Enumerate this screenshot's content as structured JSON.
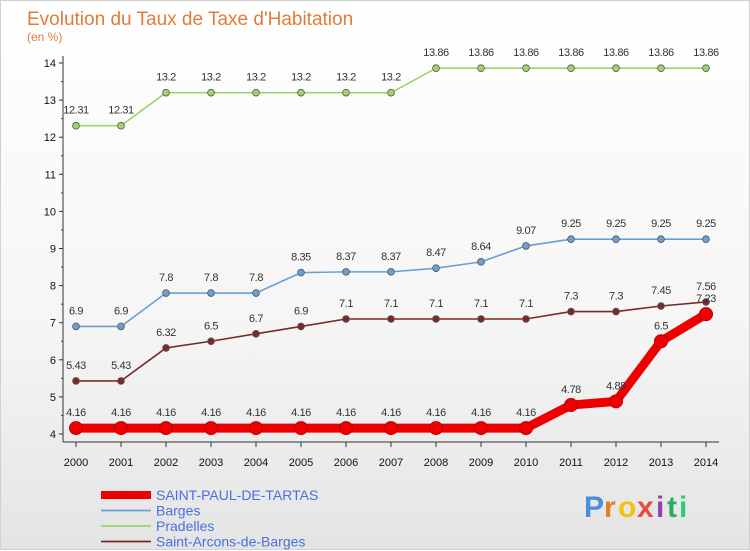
{
  "chart_data": {
    "type": "line",
    "title": "Evolution du Taux de Taxe d'Habitation",
    "subtitle": "(en %)",
    "xlabel": "",
    "ylabel": "",
    "x": [
      "2000",
      "2001",
      "2002",
      "2003",
      "2004",
      "2005",
      "2006",
      "2007",
      "2008",
      "2009",
      "2010",
      "2011",
      "2012",
      "2013",
      "2014"
    ],
    "ylim": [
      4,
      14
    ],
    "yticks": [
      4,
      5,
      6,
      7,
      8,
      9,
      10,
      11,
      12,
      13,
      14
    ],
    "grid": false,
    "legend_position": "bottom-left",
    "series": [
      {
        "name": "SAINT-PAUL-DE-TARTAS",
        "color": "#ee0000",
        "values": [
          4.16,
          4.16,
          4.16,
          4.16,
          4.16,
          4.16,
          4.16,
          4.16,
          4.16,
          4.16,
          4.16,
          4.78,
          4.88,
          6.5,
          7.23
        ],
        "labels": [
          "4.16",
          "4.16",
          "4.16",
          "4.16",
          "4.16",
          "4.16",
          "4.16",
          "4.16",
          "4.16",
          "4.16",
          "4.16",
          "4.78",
          "4.88",
          "6.5",
          "7.23"
        ]
      },
      {
        "name": "Barges",
        "color": "#6a9fd4",
        "values": [
          6.9,
          6.9,
          7.8,
          7.8,
          7.8,
          8.35,
          8.37,
          8.37,
          8.47,
          8.64,
          9.07,
          9.25,
          9.25,
          9.25,
          9.25
        ],
        "labels": [
          "6.9",
          "6.9",
          "7.8",
          "7.8",
          "7.8",
          "8.35",
          "8.37",
          "8.37",
          "8.47",
          "8.64",
          "9.07",
          "9.25",
          "9.25",
          "9.25",
          "9.25"
        ]
      },
      {
        "name": "Pradelles",
        "color": "#9ed46a",
        "values": [
          12.31,
          12.31,
          13.2,
          13.2,
          13.2,
          13.2,
          13.2,
          13.2,
          13.86,
          13.86,
          13.86,
          13.86,
          13.86,
          13.86,
          13.86
        ],
        "labels": [
          "12.31",
          "12.31",
          "13.2",
          "13.2",
          "13.2",
          "13.2",
          "13.2",
          "13.2",
          "13.86",
          "13.86",
          "13.86",
          "13.86",
          "13.86",
          "13.86",
          "13.86"
        ]
      },
      {
        "name": "Saint-Arcons-de-Barges",
        "color": "#7a2a2a",
        "values": [
          5.43,
          5.43,
          6.32,
          6.5,
          6.7,
          6.9,
          7.1,
          7.1,
          7.1,
          7.1,
          7.1,
          7.3,
          7.3,
          7.45,
          7.56
        ],
        "labels": [
          "5.43",
          "5.43",
          "6.32",
          "6.5",
          "6.7",
          "6.9",
          "7.1",
          "7.1",
          "7.1",
          "7.1",
          "7.1",
          "7.3",
          "7.3",
          "7.45",
          "7.56"
        ]
      }
    ]
  },
  "logo": {
    "letters": [
      "P",
      "r",
      "o",
      "x",
      "i",
      "t",
      "i"
    ],
    "colors": [
      "#4a90d9",
      "#e67e22",
      "#f1c40f",
      "#e74c3c",
      "#8e44ad",
      "#27ae60",
      "#2ecc71"
    ]
  }
}
